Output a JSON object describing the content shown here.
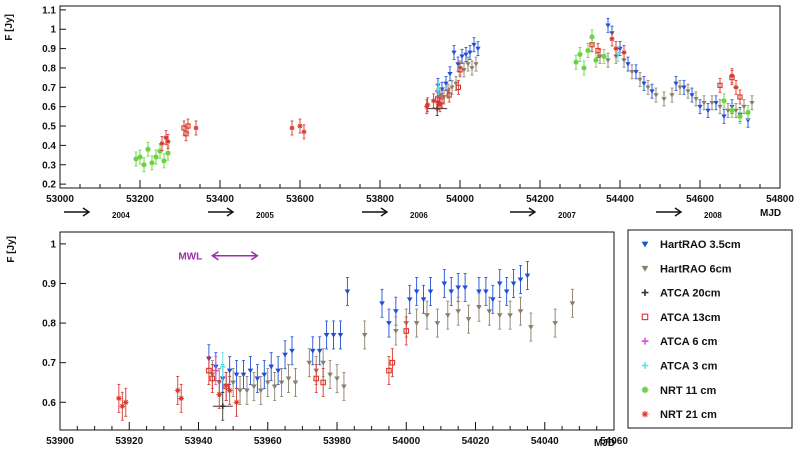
{
  "top_panel": {
    "ylabel": "F [Jy]",
    "xlabel": "MJD",
    "year_labels": [
      "2004",
      "2005",
      "2006",
      "2007",
      "2008"
    ]
  },
  "bottom_panel": {
    "ylabel": "F [Jy]",
    "xlabel": "MJD",
    "annotation": "MWL"
  },
  "legend": [
    {
      "name": "HartRAO 3.5cm",
      "color": "#1f4fd6",
      "marker": "tri-down"
    },
    {
      "name": "HartRAO 6cm",
      "color": "#8a7f6a",
      "marker": "tri-down"
    },
    {
      "name": "ATCA 20cm",
      "color": "#333333",
      "marker": "cross"
    },
    {
      "name": "ATCA 13cm",
      "color": "#d9352a",
      "marker": "square-open"
    },
    {
      "name": "ATCA 6 cm",
      "color": "#d84fd8",
      "marker": "cross"
    },
    {
      "name": "ATCA 3 cm",
      "color": "#5ee0e6",
      "marker": "cross"
    },
    {
      "name": "NRT 11 cm",
      "color": "#6bd33f",
      "marker": "star"
    },
    {
      "name": "NRT 21 cm",
      "color": "#d9352a",
      "marker": "star-open"
    }
  ],
  "chart_data": [
    {
      "type": "scatter",
      "xlabel": "MJD",
      "ylabel": "F [Jy]",
      "xlim": [
        53000,
        54800
      ],
      "ylim": [
        0.18,
        1.12
      ],
      "xticks": [
        53000,
        53200,
        53400,
        53600,
        53800,
        54000,
        54200,
        54400,
        54600,
        54800
      ],
      "yticks": [
        0.2,
        0.3,
        0.4,
        0.5,
        0.6,
        0.7,
        0.8,
        0.9,
        1.0,
        1.1
      ],
      "year_markers": [
        {
          "x": 53000,
          "label": "2004"
        },
        {
          "x": 53360,
          "label": "2005"
        },
        {
          "x": 53745,
          "label": "2006"
        },
        {
          "x": 54115,
          "label": "2007"
        },
        {
          "x": 54480,
          "label": "2008"
        }
      ],
      "series": [
        {
          "name": "HartRAO 3.5cm",
          "points": [
            [
              53945,
              0.71
            ],
            [
              53955,
              0.69
            ],
            [
              53965,
              0.72
            ],
            [
              53975,
              0.77
            ],
            [
              53985,
              0.88
            ],
            [
              53995,
              0.82
            ],
            [
              54005,
              0.86
            ],
            [
              54015,
              0.87
            ],
            [
              54025,
              0.88
            ],
            [
              54035,
              0.92
            ],
            [
              54045,
              0.9
            ],
            [
              54370,
              1.02
            ],
            [
              54380,
              0.98
            ],
            [
              54400,
              0.9
            ],
            [
              54420,
              0.82
            ],
            [
              54440,
              0.78
            ],
            [
              54460,
              0.72
            ],
            [
              54480,
              0.68
            ],
            [
              54540,
              0.72
            ],
            [
              54560,
              0.7
            ],
            [
              54580,
              0.66
            ],
            [
              54600,
              0.6
            ],
            [
              54620,
              0.58
            ],
            [
              54640,
              0.62
            ],
            [
              54660,
              0.55
            ],
            [
              54680,
              0.6
            ],
            [
              54700,
              0.56
            ],
            [
              54720,
              0.53
            ]
          ]
        },
        {
          "name": "HartRAO 6cm",
          "points": [
            [
              53950,
              0.66
            ],
            [
              53960,
              0.65
            ],
            [
              53970,
              0.68
            ],
            [
              53980,
              0.7
            ],
            [
              53990,
              0.72
            ],
            [
              54000,
              0.8
            ],
            [
              54010,
              0.79
            ],
            [
              54020,
              0.82
            ],
            [
              54030,
              0.8
            ],
            [
              54040,
              0.82
            ],
            [
              54350,
              0.86
            ],
            [
              54370,
              0.84
            ],
            [
              54390,
              0.86
            ],
            [
              54410,
              0.84
            ],
            [
              54430,
              0.78
            ],
            [
              54450,
              0.74
            ],
            [
              54470,
              0.7
            ],
            [
              54490,
              0.66
            ],
            [
              54510,
              0.64
            ],
            [
              54530,
              0.66
            ],
            [
              54550,
              0.7
            ],
            [
              54570,
              0.68
            ],
            [
              54590,
              0.64
            ],
            [
              54610,
              0.62
            ],
            [
              54630,
              0.62
            ],
            [
              54650,
              0.6
            ],
            [
              54670,
              0.58
            ],
            [
              54690,
              0.58
            ],
            [
              54710,
              0.6
            ],
            [
              54730,
              0.62
            ]
          ]
        },
        {
          "name": "ATCA 20cm",
          "points": [
            [
              53943,
              0.59
            ]
          ]
        },
        {
          "name": "ATCA 13cm",
          "points": [
            [
              53310,
              0.49
            ],
            [
              53315,
              0.46
            ],
            [
              53320,
              0.5
            ],
            [
              53944,
              0.64
            ],
            [
              53955,
              0.63
            ],
            [
              53973,
              0.66
            ],
            [
              53996,
              0.7
            ],
            [
              54000,
              0.79
            ],
            [
              54330,
              0.92
            ],
            [
              54345,
              0.89
            ],
            [
              54650,
              0.71
            ],
            [
              54680,
              0.75
            ],
            [
              54700,
              0.65
            ]
          ]
        },
        {
          "name": "ATCA 6 cm",
          "points": [
            [
              53944,
              0.68
            ]
          ]
        },
        {
          "name": "ATCA 3 cm",
          "points": [
            [
              53946,
              0.69
            ],
            [
              54395,
              0.87
            ]
          ]
        },
        {
          "name": "NRT 11 cm",
          "points": [
            [
              53190,
              0.33
            ],
            [
              53200,
              0.34
            ],
            [
              53210,
              0.3
            ],
            [
              53220,
              0.38
            ],
            [
              53230,
              0.31
            ],
            [
              53240,
              0.34
            ],
            [
              53250,
              0.37
            ],
            [
              53260,
              0.32
            ],
            [
              53270,
              0.36
            ],
            [
              54290,
              0.83
            ],
            [
              54300,
              0.87
            ],
            [
              54310,
              0.8
            ],
            [
              54320,
              0.89
            ],
            [
              54330,
              0.96
            ],
            [
              54340,
              0.84
            ],
            [
              54360,
              0.86
            ],
            [
              54660,
              0.63
            ],
            [
              54680,
              0.58
            ],
            [
              54700,
              0.55
            ],
            [
              54720,
              0.57
            ]
          ]
        },
        {
          "name": "NRT 21 cm",
          "points": [
            [
              53255,
              0.41
            ],
            [
              53265,
              0.44
            ],
            [
              53270,
              0.42
            ],
            [
              53340,
              0.49
            ],
            [
              53580,
              0.49
            ],
            [
              53600,
              0.5
            ],
            [
              53610,
              0.47
            ],
            [
              53917,
              0.6
            ],
            [
              53919,
              0.61
            ],
            [
              53934,
              0.63
            ],
            [
              53945,
              0.62
            ],
            [
              53950,
              0.61
            ],
            [
              54380,
              0.95
            ],
            [
              54390,
              0.9
            ],
            [
              54410,
              0.88
            ],
            [
              54680,
              0.76
            ],
            [
              54690,
              0.7
            ]
          ]
        }
      ]
    },
    {
      "type": "scatter",
      "xlabel": "MJD",
      "ylabel": "F [Jy]",
      "xlim": [
        53900,
        54060
      ],
      "ylim": [
        0.53,
        1.03
      ],
      "xticks": [
        53900,
        53920,
        53940,
        53960,
        53980,
        54000,
        54020,
        54040,
        54060
      ],
      "yticks": [
        0.6,
        0.7,
        0.8,
        0.9,
        1.0
      ],
      "annotation": {
        "label": "MWL",
        "x0": 53944,
        "x1": 53957,
        "y": 0.97
      },
      "series": [
        {
          "name": "HartRAO 3.5cm",
          "points": [
            [
              53943,
              0.71
            ],
            [
              53945,
              0.69
            ],
            [
              53947,
              0.66
            ],
            [
              53949,
              0.68
            ],
            [
              53951,
              0.67
            ],
            [
              53953,
              0.67
            ],
            [
              53955,
              0.68
            ],
            [
              53957,
              0.66
            ],
            [
              53959,
              0.67
            ],
            [
              53961,
              0.69
            ],
            [
              53963,
              0.68
            ],
            [
              53965,
              0.72
            ],
            [
              53967,
              0.73
            ],
            [
              53973,
              0.73
            ],
            [
              53975,
              0.73
            ],
            [
              53977,
              0.77
            ],
            [
              53979,
              0.77
            ],
            [
              53981,
              0.77
            ],
            [
              53983,
              0.88
            ],
            [
              53993,
              0.85
            ],
            [
              53995,
              0.8
            ],
            [
              53997,
              0.83
            ],
            [
              54001,
              0.86
            ],
            [
              54003,
              0.88
            ],
            [
              54005,
              0.86
            ],
            [
              54007,
              0.88
            ],
            [
              54011,
              0.9
            ],
            [
              54013,
              0.88
            ],
            [
              54015,
              0.89
            ],
            [
              54017,
              0.89
            ],
            [
              54021,
              0.88
            ],
            [
              54023,
              0.88
            ],
            [
              54025,
              0.86
            ],
            [
              54027,
              0.9
            ],
            [
              54029,
              0.88
            ],
            [
              54031,
              0.9
            ],
            [
              54033,
              0.91
            ],
            [
              54035,
              0.92
            ]
          ]
        },
        {
          "name": "HartRAO 6cm",
          "points": [
            [
              53944,
              0.67
            ],
            [
              53946,
              0.65
            ],
            [
              53948,
              0.64
            ],
            [
              53950,
              0.65
            ],
            [
              53952,
              0.63
            ],
            [
              53954,
              0.63
            ],
            [
              53956,
              0.64
            ],
            [
              53958,
              0.63
            ],
            [
              53960,
              0.65
            ],
            [
              53962,
              0.64
            ],
            [
              53964,
              0.65
            ],
            [
              53966,
              0.66
            ],
            [
              53968,
              0.65
            ],
            [
              53972,
              0.7
            ],
            [
              53974,
              0.68
            ],
            [
              53976,
              0.7
            ],
            [
              53978,
              0.67
            ],
            [
              53980,
              0.66
            ],
            [
              53982,
              0.64
            ],
            [
              53988,
              0.77
            ],
            [
              53997,
              0.78
            ],
            [
              54000,
              0.8
            ],
            [
              54003,
              0.8
            ],
            [
              54006,
              0.82
            ],
            [
              54009,
              0.8
            ],
            [
              54012,
              0.82
            ],
            [
              54015,
              0.83
            ],
            [
              54018,
              0.81
            ],
            [
              54021,
              0.84
            ],
            [
              54024,
              0.83
            ],
            [
              54027,
              0.82
            ],
            [
              54030,
              0.82
            ],
            [
              54033,
              0.83
            ],
            [
              54036,
              0.79
            ],
            [
              54043,
              0.8
            ],
            [
              54048,
              0.85
            ]
          ]
        },
        {
          "name": "ATCA 20cm",
          "points": [
            [
              53947,
              0.59
            ]
          ]
        },
        {
          "name": "ATCA 13cm",
          "points": [
            [
              53943,
              0.68
            ],
            [
              53944,
              0.66
            ],
            [
              53948,
              0.64
            ],
            [
              53974,
              0.66
            ],
            [
              53976,
              0.65
            ],
            [
              53995,
              0.68
            ],
            [
              53996,
              0.7
            ],
            [
              54000,
              0.78
            ]
          ]
        },
        {
          "name": "ATCA 6 cm",
          "points": [
            [
              53945,
              0.68
            ]
          ]
        },
        {
          "name": "ATCA 3 cm",
          "points": [
            [
              53947,
              0.69
            ]
          ]
        },
        {
          "name": "NRT 11 cm",
          "points": []
        },
        {
          "name": "NRT 21 cm",
          "points": [
            [
              53917,
              0.61
            ],
            [
              53918,
              0.59
            ],
            [
              53919,
              0.6
            ],
            [
              53934,
              0.63
            ],
            [
              53935,
              0.61
            ],
            [
              53946,
              0.62
            ],
            [
              53949,
              0.63
            ],
            [
              53951,
              0.6
            ]
          ]
        }
      ]
    }
  ]
}
